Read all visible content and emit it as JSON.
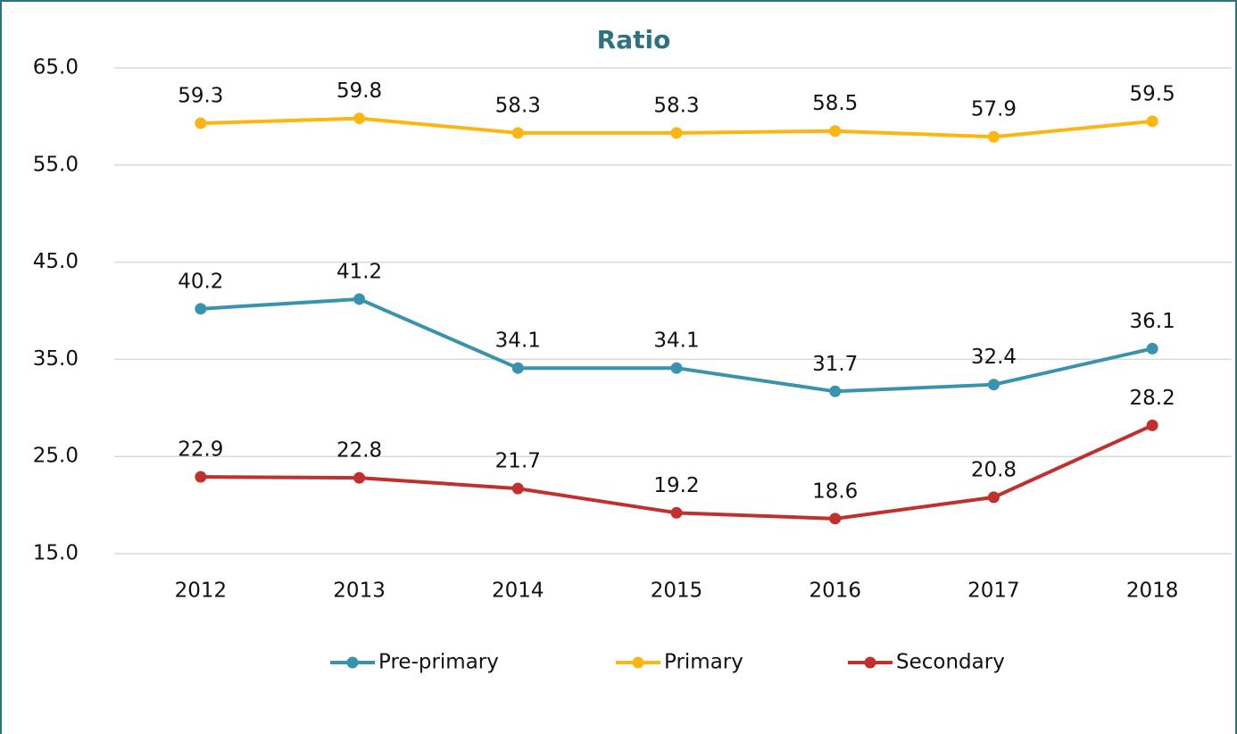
{
  "chart_data": {
    "type": "line",
    "title": "Ratio",
    "categories": [
      "2012",
      "2013",
      "2014",
      "2015",
      "2016",
      "2017",
      "2018"
    ],
    "series": [
      {
        "name": "Pre-primary",
        "color": "#3a93ad",
        "values": [
          40.2,
          41.2,
          34.1,
          34.1,
          31.7,
          32.4,
          36.1
        ]
      },
      {
        "name": "Primary",
        "color": "#fbb614",
        "values": [
          59.3,
          59.8,
          58.3,
          58.3,
          58.5,
          57.9,
          59.5
        ]
      },
      {
        "name": "Secondary",
        "color": "#c0302f",
        "values": [
          22.9,
          22.8,
          21.7,
          19.2,
          18.6,
          20.8,
          28.2
        ]
      }
    ],
    "ylim": [
      15,
      65
    ],
    "yticks": [
      {
        "value": 15,
        "label": "15.0"
      },
      {
        "value": 25,
        "label": "25.0"
      },
      {
        "value": 35,
        "label": "35.0"
      },
      {
        "value": 45,
        "label": "45.0"
      },
      {
        "value": 55,
        "label": "55.0"
      },
      {
        "value": 65,
        "label": "65.0"
      }
    ],
    "grid": true,
    "legend": "bottom"
  }
}
